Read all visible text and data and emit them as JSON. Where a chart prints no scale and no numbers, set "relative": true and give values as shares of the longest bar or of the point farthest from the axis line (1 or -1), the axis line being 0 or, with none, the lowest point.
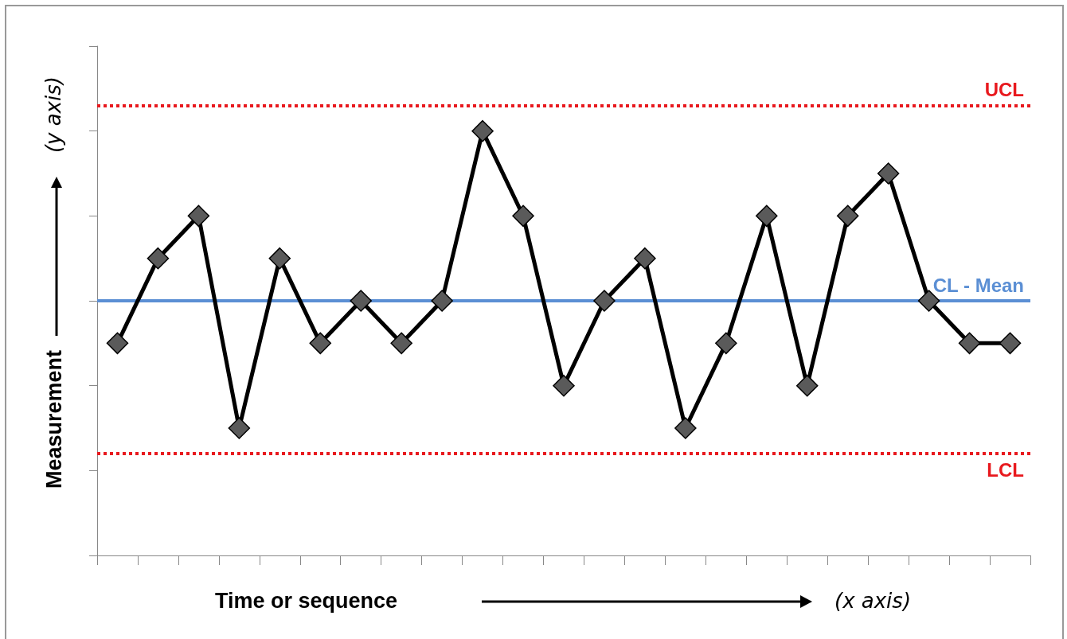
{
  "chart_data": {
    "type": "line",
    "relative": true,
    "xlabel": "Time or sequence",
    "ylabel": "Measurement",
    "annotations": [
      "(y axis)",
      "(x axis)"
    ],
    "categories": [
      null,
      null,
      null,
      null,
      null,
      null,
      null,
      null,
      null,
      null,
      null,
      null,
      null,
      null,
      null,
      null,
      null,
      null,
      null,
      null,
      null,
      null,
      null
    ],
    "series": [
      {
        "color": "#000000",
        "values": [
          0.5,
          0.7,
          0.8,
          0.3,
          0.7,
          0.5,
          0.6,
          0.5,
          0.6,
          1,
          0.8,
          0.4,
          0.6,
          0.7,
          0.3,
          0.5,
          0.8,
          0.4,
          0.8,
          0.9,
          0.6,
          0.5,
          0.5
        ]
      }
    ],
    "marker": "diamond",
    "line_style": "solid",
    "grid": false,
    "ref_lines": [
      {
        "axis": "y",
        "value": 1.06,
        "label": "UCL",
        "color": "#e8191e",
        "line_style": "dotted"
      },
      {
        "axis": "y",
        "value": 0.6,
        "label": "CL - Mean",
        "color": "#5b8fd4",
        "line_style": "solid"
      },
      {
        "axis": "y",
        "value": 0.24,
        "label": "LCL",
        "color": "#e8191e",
        "line_style": "dotted"
      }
    ]
  }
}
